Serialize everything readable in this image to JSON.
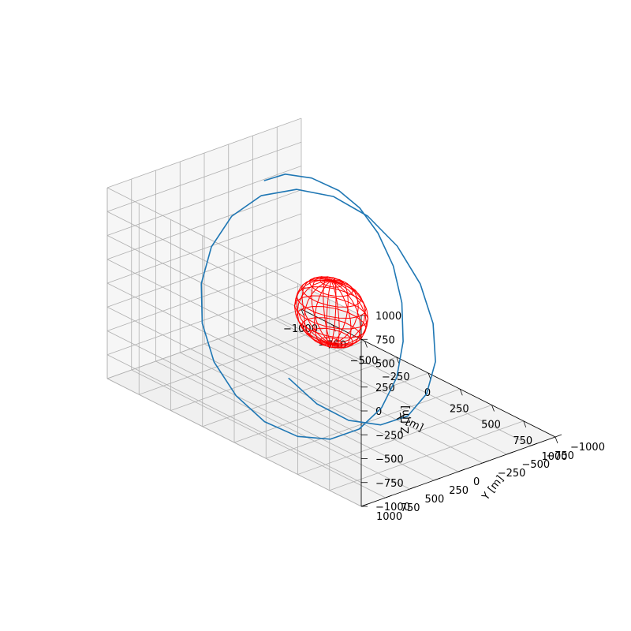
{
  "chart_data": {
    "type": "line",
    "projection": "3d",
    "title": "",
    "xlabel": "X [m]",
    "ylabel": "Y [m]",
    "zlabel": "Z [m]",
    "xlim": [
      -1000,
      1000
    ],
    "ylim": [
      -1000,
      1000
    ],
    "zlim": [
      -1000,
      1000
    ],
    "xticks": [
      "−1000",
      "−750",
      "−500",
      "−250",
      "0",
      "250",
      "500",
      "750",
      "1000"
    ],
    "yticks": [
      "−1000",
      "−750",
      "−500",
      "−250",
      "0",
      "250",
      "500",
      "750",
      "1000"
    ],
    "zticks": [
      "−1000",
      "−750",
      "−500",
      "−250",
      "0",
      "250",
      "500",
      "750",
      "1000"
    ],
    "grid": true,
    "series": [
      {
        "kind": "line",
        "color": "#1f77b4",
        "points": [
          [
            -900,
            -490,
            600
          ],
          [
            -760,
            -520,
            750
          ],
          [
            -560,
            -530,
            840
          ],
          [
            -330,
            -510,
            870
          ],
          [
            -120,
            -450,
            850
          ],
          [
            100,
            -350,
            770
          ],
          [
            320,
            -220,
            620
          ],
          [
            510,
            -60,
            420
          ],
          [
            650,
            110,
            170
          ],
          [
            730,
            280,
            -90
          ],
          [
            740,
            450,
            -340
          ],
          [
            670,
            590,
            -560
          ],
          [
            520,
            690,
            -730
          ],
          [
            300,
            740,
            -830
          ],
          [
            40,
            740,
            -850
          ],
          [
            -230,
            680,
            -780
          ],
          [
            -480,
            580,
            -630
          ],
          [
            -680,
            440,
            -410
          ],
          [
            -810,
            280,
            -140
          ],
          [
            -860,
            110,
            150
          ],
          [
            -830,
            -60,
            430
          ],
          [
            -720,
            -220,
            660
          ],
          [
            -540,
            -350,
            800
          ],
          [
            -320,
            -440,
            840
          ],
          [
            -80,
            -480,
            780
          ],
          [
            160,
            -470,
            630
          ],
          [
            380,
            -420,
            400
          ],
          [
            550,
            -330,
            130
          ],
          [
            660,
            -210,
            -150
          ],
          [
            690,
            -80,
            -420
          ],
          [
            640,
            50,
            -640
          ],
          [
            510,
            160,
            -780
          ],
          [
            320,
            240,
            -830
          ],
          [
            100,
            280,
            -790
          ],
          [
            -120,
            280,
            -670
          ]
        ]
      },
      {
        "kind": "wireframe-sphere",
        "color": "#ff0000",
        "center": [
          0,
          0,
          0
        ],
        "radius": 100
      }
    ]
  }
}
